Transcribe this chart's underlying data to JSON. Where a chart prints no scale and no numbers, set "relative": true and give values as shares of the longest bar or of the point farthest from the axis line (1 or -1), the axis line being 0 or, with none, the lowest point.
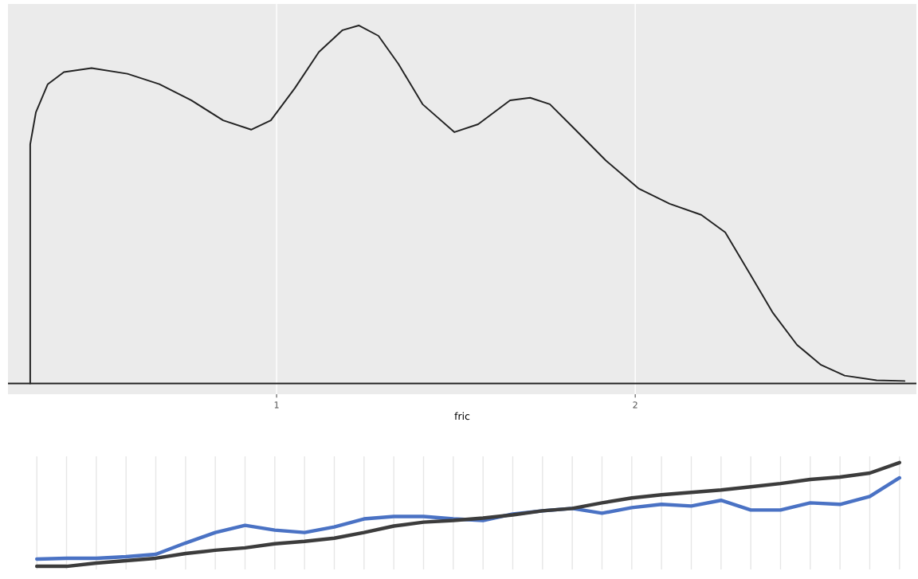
{
  "chart_data": [
    {
      "type": "line",
      "xlabel": "fric",
      "relative": true,
      "xlim": [
        0.251,
        2.784
      ],
      "xticks": [
        1,
        2
      ],
      "grid": "x",
      "color": "#222222",
      "ref_lines": [
        {
          "axis": "y",
          "value": 0,
          "color": "#222222"
        }
      ],
      "x": [
        0.313,
        0.313,
        0.329,
        0.362,
        0.407,
        0.484,
        0.584,
        0.673,
        0.762,
        0.851,
        0.929,
        0.984,
        1.051,
        1.118,
        1.184,
        1.229,
        1.284,
        1.34,
        1.407,
        1.496,
        1.562,
        1.651,
        1.707,
        1.762,
        1.829,
        1.918,
        2.009,
        2.096,
        2.184,
        2.251,
        2.318,
        2.384,
        2.451,
        2.518,
        2.584,
        2.673,
        2.751
      ],
      "values": [
        0,
        0.668,
        0.758,
        0.836,
        0.87,
        0.881,
        0.865,
        0.836,
        0.791,
        0.735,
        0.709,
        0.735,
        0.825,
        0.926,
        0.987,
        1.0,
        0.971,
        0.892,
        0.78,
        0.702,
        0.724,
        0.791,
        0.798,
        0.78,
        0.713,
        0.623,
        0.545,
        0.502,
        0.471,
        0.422,
        0.309,
        0.197,
        0.108,
        0.052,
        0.022,
        0.009,
        0.007
      ]
    },
    {
      "type": "line",
      "relative": true,
      "grid": "x",
      "categories": [
        null,
        null,
        null,
        null,
        null,
        null,
        null,
        null,
        null,
        null,
        null,
        null,
        null,
        null,
        null,
        null,
        null,
        null,
        null,
        null,
        null,
        null,
        null,
        null,
        null,
        null,
        null,
        null,
        null,
        null
      ],
      "series": [
        {
          "color": "#4a72c4",
          "values": [
            0.07,
            0.078,
            0.078,
            0.093,
            0.116,
            0.225,
            0.326,
            0.395,
            0.349,
            0.326,
            0.38,
            0.457,
            0.481,
            0.481,
            0.457,
            0.442,
            0.504,
            0.535,
            0.558,
            0.512,
            0.566,
            0.597,
            0.581,
            0.636,
            0.543,
            0.543,
            0.612,
            0.597,
            0.674,
            0.853
          ]
        },
        {
          "color": "#3c3c3c",
          "values": [
            0,
            0,
            0.031,
            0.054,
            0.078,
            0.124,
            0.155,
            0.178,
            0.217,
            0.24,
            0.271,
            0.326,
            0.388,
            0.426,
            0.442,
            0.465,
            0.496,
            0.535,
            0.558,
            0.612,
            0.659,
            0.69,
            0.713,
            0.736,
            0.767,
            0.798,
            0.837,
            0.86,
            0.899,
            1.0
          ]
        }
      ]
    }
  ]
}
